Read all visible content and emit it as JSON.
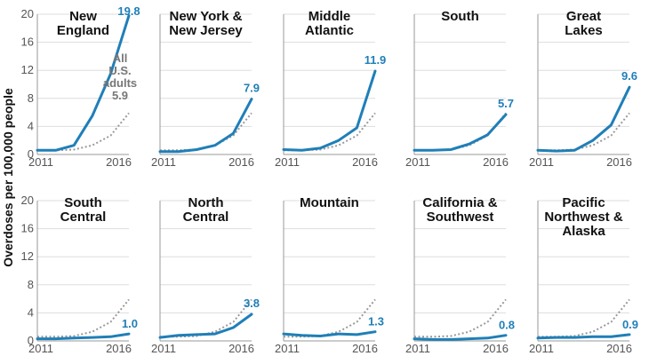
{
  "chart_data": {
    "type": "line",
    "ylabel": "Overdoses per 100,000 people",
    "ylim": [
      0,
      20
    ],
    "yticks": [
      0,
      4,
      8,
      12,
      16,
      20
    ],
    "x": [
      2011,
      2012,
      2013,
      2014,
      2015,
      2016
    ],
    "x_tick_labels": [
      "2011",
      "2016"
    ],
    "series_color": "#1f7fb8",
    "us_line_color": "#999999",
    "grid": true,
    "us_adults": {
      "name": "All U.S. adults",
      "label_lines": [
        "All",
        "U.S.",
        "adults"
      ],
      "value_label": "5.9",
      "values": [
        0.6,
        0.6,
        0.7,
        1.3,
        2.7,
        5.9
      ]
    },
    "regions": [
      {
        "title_lines": [
          "New",
          "England"
        ],
        "value_label": "19.8",
        "values": [
          0.6,
          0.6,
          1.3,
          5.5,
          11.5,
          19.8
        ]
      },
      {
        "title_lines": [
          "New York &",
          "New Jersey"
        ],
        "value_label": "7.9",
        "values": [
          0.4,
          0.4,
          0.7,
          1.3,
          3.0,
          7.9
        ]
      },
      {
        "title_lines": [
          "Middle",
          "Atlantic"
        ],
        "value_label": "11.9",
        "values": [
          0.7,
          0.6,
          0.9,
          2.0,
          3.8,
          11.9
        ]
      },
      {
        "title_lines": [
          "South"
        ],
        "value_label": "5.7",
        "values": [
          0.6,
          0.6,
          0.7,
          1.5,
          2.8,
          5.7
        ]
      },
      {
        "title_lines": [
          "Great",
          "Lakes"
        ],
        "value_label": "9.6",
        "values": [
          0.6,
          0.5,
          0.6,
          2.0,
          4.2,
          9.6
        ]
      },
      {
        "title_lines": [
          "South",
          "Central"
        ],
        "value_label": "1.0",
        "values": [
          0.3,
          0.3,
          0.4,
          0.5,
          0.6,
          1.0
        ]
      },
      {
        "title_lines": [
          "North",
          "Central"
        ],
        "value_label": "3.8",
        "values": [
          0.5,
          0.8,
          0.9,
          1.0,
          1.9,
          3.8
        ]
      },
      {
        "title_lines": [
          "Mountain"
        ],
        "value_label": "1.3",
        "values": [
          1.0,
          0.8,
          0.7,
          1.0,
          0.9,
          1.3
        ]
      },
      {
        "title_lines": [
          "California &",
          "Southwest"
        ],
        "value_label": "0.8",
        "values": [
          0.3,
          0.2,
          0.2,
          0.3,
          0.4,
          0.8
        ]
      },
      {
        "title_lines": [
          "Pacific",
          "Northwest &",
          "Alaska"
        ],
        "value_label": "0.9",
        "values": [
          0.4,
          0.5,
          0.5,
          0.6,
          0.6,
          0.9
        ]
      }
    ]
  }
}
